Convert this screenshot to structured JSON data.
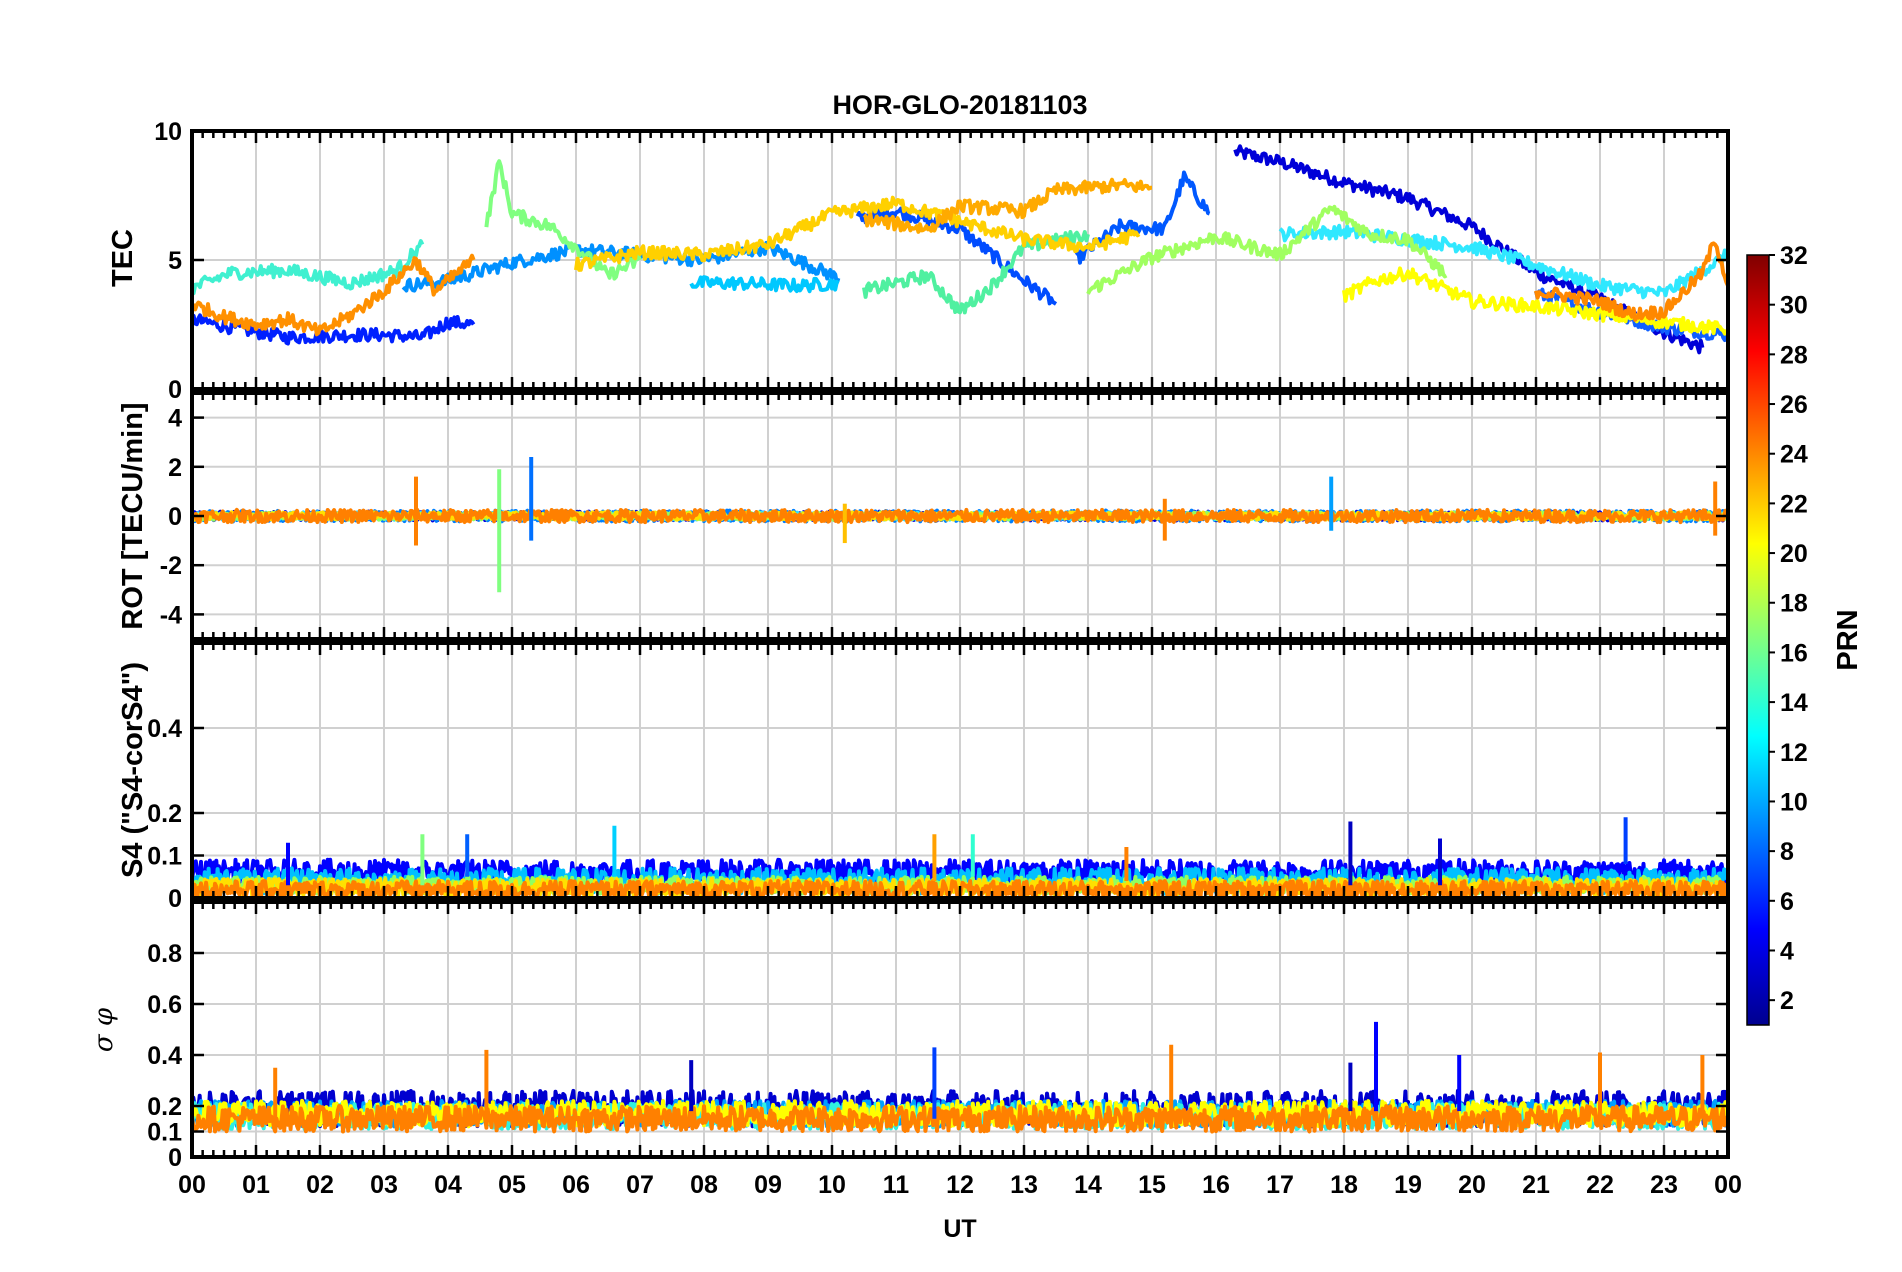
{
  "chart_data": {
    "type": "line",
    "title": "HOR-GLO-20181103",
    "xlabel": "UT",
    "x_tick_labels": [
      "00",
      "01",
      "02",
      "03",
      "04",
      "05",
      "06",
      "07",
      "08",
      "09",
      "10",
      "11",
      "12",
      "13",
      "14",
      "15",
      "16",
      "17",
      "18",
      "19",
      "20",
      "21",
      "22",
      "23",
      "00"
    ],
    "xlim_hours": [
      0,
      24
    ],
    "colorbar": {
      "label": "PRN",
      "range": [
        1,
        32
      ],
      "tick_labels": [
        "32",
        "30",
        "28",
        "26",
        "24",
        "22",
        "20",
        "18",
        "16",
        "14",
        "12",
        "10",
        "8",
        "6",
        "4",
        "2"
      ],
      "colors": [
        "#00008f",
        "#0000ff",
        "#0080ff",
        "#00ffff",
        "#80ff80",
        "#ffff00",
        "#ff8000",
        "#ff0000",
        "#800000"
      ]
    },
    "panels": [
      {
        "id": "tec",
        "ylabel": "TEC",
        "ylim": [
          0,
          10
        ],
        "yticks": [
          0,
          5,
          10
        ],
        "ytick_labels": [
          "0",
          "5",
          "10"
        ],
        "series": [
          {
            "prn": 2,
            "color": "#0000d8",
            "points": [
              [
                16.3,
                9.2
              ],
              [
                17,
                8.8
              ],
              [
                18,
                8.0
              ],
              [
                19,
                7.4
              ],
              [
                20,
                6.3
              ],
              [
                21,
                4.5
              ],
              [
                22,
                3.5
              ],
              [
                23,
                2.2
              ],
              [
                23.6,
                1.6
              ]
            ]
          },
          {
            "prn": 4,
            "color": "#0020ff",
            "points": [
              [
                0,
                2.7
              ],
              [
                0.6,
                2.4
              ],
              [
                1.5,
                2.0
              ],
              [
                2.5,
                2.1
              ],
              [
                3,
                2.1
              ],
              [
                3.6,
                2.0
              ],
              [
                4.0,
                2.6
              ],
              [
                4.4,
                2.5
              ]
            ]
          },
          {
            "prn": 6,
            "color": "#004cff",
            "points": [
              [
                10.4,
                6.6
              ],
              [
                11,
                6.9
              ],
              [
                12,
                6.2
              ],
              [
                13,
                4.2
              ],
              [
                13.5,
                3.3
              ]
            ]
          },
          {
            "prn": 6,
            "color": "#0058ff",
            "points": [
              [
                13.8,
                5.0
              ],
              [
                14.5,
                6.3
              ],
              [
                15.2,
                6.2
              ],
              [
                15.5,
                8.2
              ],
              [
                15.9,
                6.8
              ]
            ]
          },
          {
            "prn": 7,
            "color": "#1060ff",
            "points": [
              [
                21,
                3.7
              ],
              [
                22,
                3.0
              ],
              [
                23,
                2.4
              ],
              [
                24,
                2.1
              ]
            ]
          },
          {
            "prn": 9,
            "color": "#0090ff",
            "points": [
              [
                3.3,
                4.0
              ],
              [
                4,
                4.2
              ],
              [
                5,
                4.9
              ],
              [
                6,
                5.4
              ],
              [
                7,
                5.2
              ],
              [
                8,
                5.0
              ],
              [
                9,
                5.5
              ],
              [
                10.1,
                4.3
              ]
            ]
          },
          {
            "prn": 11,
            "color": "#00c8ff",
            "points": [
              [
                7.8,
                4.1
              ],
              [
                8.5,
                4.1
              ],
              [
                9.5,
                4.0
              ],
              [
                10.1,
                4.1
              ]
            ]
          },
          {
            "prn": 13,
            "color": "#30e8ff",
            "points": [
              [
                17,
                6.0
              ],
              [
                18,
                6.1
              ],
              [
                19,
                5.8
              ],
              [
                20,
                5.5
              ],
              [
                21,
                4.8
              ],
              [
                22,
                4.0
              ],
              [
                23,
                3.7
              ],
              [
                24,
                5.2
              ]
            ]
          },
          {
            "prn": 13,
            "color": "#40f0d0",
            "points": [
              [
                0,
                3.9
              ],
              [
                0.6,
                4.5
              ],
              [
                1.5,
                4.6
              ],
              [
                2.5,
                4.1
              ],
              [
                3.2,
                4.6
              ],
              [
                3.6,
                5.6
              ]
            ]
          },
          {
            "prn": 15,
            "color": "#50f0a0",
            "points": [
              [
                10.5,
                3.8
              ],
              [
                11.5,
                4.4
              ],
              [
                12,
                3.0
              ],
              [
                12.5,
                4.0
              ],
              [
                13,
                5.5
              ],
              [
                14,
                6.0
              ]
            ]
          },
          {
            "prn": 16,
            "color": "#80ff80",
            "points": [
              [
                4.6,
                6.3
              ],
              [
                4.8,
                8.8
              ],
              [
                5,
                6.8
              ],
              [
                5.6,
                6.3
              ],
              [
                6,
                5.5
              ],
              [
                6.5,
                4.4
              ],
              [
                7,
                5.0
              ]
            ]
          },
          {
            "prn": 17,
            "color": "#a0ff60",
            "points": [
              [
                14,
                3.8
              ],
              [
                15,
                5.1
              ],
              [
                16,
                5.9
              ],
              [
                17,
                5.2
              ],
              [
                17.8,
                7.0
              ],
              [
                18.4,
                6.0
              ],
              [
                19,
                5.8
              ],
              [
                19.6,
                4.4
              ]
            ]
          },
          {
            "prn": 20,
            "color": "#ffff00",
            "points": [
              [
                18,
                3.6
              ],
              [
                18.5,
                4.2
              ],
              [
                19,
                4.5
              ],
              [
                20,
                3.4
              ],
              [
                21,
                3.2
              ],
              [
                22,
                2.9
              ],
              [
                23,
                2.6
              ],
              [
                24,
                2.3
              ]
            ]
          },
          {
            "prn": 21,
            "color": "#ffd000",
            "points": [
              [
                6,
                4.8
              ],
              [
                7,
                5.3
              ],
              [
                8,
                5.2
              ],
              [
                9,
                5.6
              ],
              [
                10,
                6.8
              ],
              [
                11,
                7.2
              ],
              [
                12,
                6.5
              ],
              [
                13,
                5.8
              ],
              [
                14,
                5.5
              ],
              [
                14.8,
                6.0
              ]
            ]
          },
          {
            "prn": 22,
            "color": "#ffaa00",
            "points": [
              [
                10.5,
                6.6
              ],
              [
                11.5,
                6.2
              ],
              [
                12,
                7.1
              ],
              [
                13,
                6.9
              ],
              [
                13.5,
                7.7
              ],
              [
                14.5,
                7.9
              ],
              [
                15,
                7.8
              ]
            ]
          },
          {
            "prn": 23,
            "color": "#ff9000",
            "points": [
              [
                0,
                3.3
              ],
              [
                0.5,
                2.8
              ],
              [
                1,
                2.5
              ],
              [
                1.5,
                2.7
              ],
              [
                2,
                2.2
              ],
              [
                2.5,
                2.9
              ],
              [
                3,
                3.8
              ],
              [
                3.5,
                5.0
              ],
              [
                3.8,
                3.8
              ],
              [
                4.4,
                5.0
              ]
            ]
          },
          {
            "prn": 23,
            "color": "#ff8800",
            "points": [
              [
                21,
                3.8
              ],
              [
                22,
                3.4
              ],
              [
                22.5,
                2.9
              ],
              [
                23,
                3.0
              ],
              [
                23.6,
                4.5
              ],
              [
                23.8,
                5.8
              ],
              [
                24,
                4.0
              ]
            ]
          }
        ]
      },
      {
        "id": "rot",
        "ylabel": "ROT [TECU/min]",
        "ylim": [
          -5,
          5
        ],
        "yticks": [
          -4,
          -2,
          0,
          2,
          4
        ],
        "ytick_labels": [
          "-4",
          "-2",
          "0",
          "2",
          "4"
        ],
        "series": [
          {
            "prn": 3,
            "color": "#0000e0",
            "base": 0,
            "amp": 0.18
          },
          {
            "prn": 9,
            "color": "#0080ff",
            "base": 0,
            "amp": 0.22
          },
          {
            "prn": 13,
            "color": "#30e0ff",
            "base": 0,
            "amp": 0.15
          },
          {
            "prn": 17,
            "color": "#90ff60",
            "base": 0,
            "amp": 0.15
          },
          {
            "prn": 20,
            "color": "#ffe000",
            "base": 0,
            "amp": 0.15
          },
          {
            "prn": 23,
            "color": "#ff8000",
            "base": 0,
            "amp": 0.25
          }
        ],
        "spikes": [
          {
            "x": 3.5,
            "lo": -1.2,
            "hi": 1.6,
            "color": "#ff8000"
          },
          {
            "x": 4.8,
            "lo": -3.1,
            "hi": 1.9,
            "color": "#80ff80"
          },
          {
            "x": 5.3,
            "lo": -1.0,
            "hi": 2.4,
            "color": "#0070ff"
          },
          {
            "x": 10.2,
            "lo": -1.1,
            "hi": 0.5,
            "color": "#ffc000"
          },
          {
            "x": 15.2,
            "lo": -1.0,
            "hi": 0.7,
            "color": "#ff8000"
          },
          {
            "x": 17.8,
            "lo": -0.6,
            "hi": 1.6,
            "color": "#00a0ff"
          },
          {
            "x": 23.8,
            "lo": -0.8,
            "hi": 1.4,
            "color": "#ff8000"
          }
        ]
      },
      {
        "id": "s4",
        "ylabel": "S4 (\"S4-corS4\")",
        "ylim": [
          0,
          0.6
        ],
        "yticks": [
          0,
          0.1,
          0.2,
          0.4
        ],
        "ytick_labels": [
          "0",
          "0.1",
          "0.2",
          "0.4"
        ],
        "series": [
          {
            "prn": 4,
            "color": "#0000ff",
            "base": 0.06,
            "amp": 0.03
          },
          {
            "prn": 12,
            "color": "#00c0ff",
            "base": 0.04,
            "amp": 0.03
          },
          {
            "prn": 17,
            "color": "#90ff60",
            "base": 0.03,
            "amp": 0.02
          },
          {
            "prn": 20,
            "color": "#ffe000",
            "base": 0.025,
            "amp": 0.02
          },
          {
            "prn": 23,
            "color": "#ff8000",
            "base": 0.02,
            "amp": 0.02
          }
        ],
        "spikes": [
          {
            "x": 1.5,
            "lo": 0.03,
            "hi": 0.13,
            "color": "#0000ff"
          },
          {
            "x": 3.6,
            "lo": 0.03,
            "hi": 0.15,
            "color": "#80ff80"
          },
          {
            "x": 4.3,
            "lo": 0.05,
            "hi": 0.15,
            "color": "#0060ff"
          },
          {
            "x": 6.6,
            "lo": 0.05,
            "hi": 0.17,
            "color": "#00d0ff"
          },
          {
            "x": 11.6,
            "lo": 0.04,
            "hi": 0.15,
            "color": "#ffa000"
          },
          {
            "x": 12.2,
            "lo": 0.05,
            "hi": 0.15,
            "color": "#30ffd0"
          },
          {
            "x": 14.6,
            "lo": 0.04,
            "hi": 0.12,
            "color": "#ff8000"
          },
          {
            "x": 18.1,
            "lo": 0.03,
            "hi": 0.18,
            "color": "#0000c0"
          },
          {
            "x": 19.5,
            "lo": 0.03,
            "hi": 0.14,
            "color": "#0000d0"
          },
          {
            "x": 22.4,
            "lo": 0.08,
            "hi": 0.19,
            "color": "#0040ff"
          }
        ]
      },
      {
        "id": "sigma",
        "ylabel": "σ φ",
        "ylim": [
          0,
          1
        ],
        "yticks": [
          0,
          0.1,
          0.2,
          0.4,
          0.6,
          0.8
        ],
        "ytick_labels": [
          "0",
          "0.1",
          "0.2",
          "0.4",
          "0.6",
          "0.8"
        ],
        "series": [
          {
            "prn": 3,
            "color": "#0000d0",
            "base": 0.19,
            "amp": 0.07
          },
          {
            "prn": 10,
            "color": "#00a0ff",
            "base": 0.17,
            "amp": 0.05
          },
          {
            "prn": 14,
            "color": "#30f0e0",
            "base": 0.16,
            "amp": 0.05
          },
          {
            "prn": 20,
            "color": "#ffff00",
            "base": 0.17,
            "amp": 0.05
          },
          {
            "prn": 23,
            "color": "#ff8000",
            "base": 0.15,
            "amp": 0.05
          }
        ],
        "spikes": [
          {
            "x": 1.3,
            "lo": 0.15,
            "hi": 0.35,
            "color": "#ff8000"
          },
          {
            "x": 4.6,
            "lo": 0.15,
            "hi": 0.42,
            "color": "#ff8000"
          },
          {
            "x": 7.8,
            "lo": 0.18,
            "hi": 0.38,
            "color": "#0000c0"
          },
          {
            "x": 11.6,
            "lo": 0.15,
            "hi": 0.43,
            "color": "#0040ff"
          },
          {
            "x": 15.3,
            "lo": 0.15,
            "hi": 0.44,
            "color": "#ff8000"
          },
          {
            "x": 18.1,
            "lo": 0.18,
            "hi": 0.37,
            "color": "#0000c0"
          },
          {
            "x": 18.5,
            "lo": 0.18,
            "hi": 0.53,
            "color": "#0000ff"
          },
          {
            "x": 19.8,
            "lo": 0.18,
            "hi": 0.4,
            "color": "#0000ff"
          },
          {
            "x": 22.0,
            "lo": 0.15,
            "hi": 0.41,
            "color": "#ff8000"
          },
          {
            "x": 23.6,
            "lo": 0.15,
            "hi": 0.4,
            "color": "#ff8000"
          }
        ]
      }
    ]
  }
}
